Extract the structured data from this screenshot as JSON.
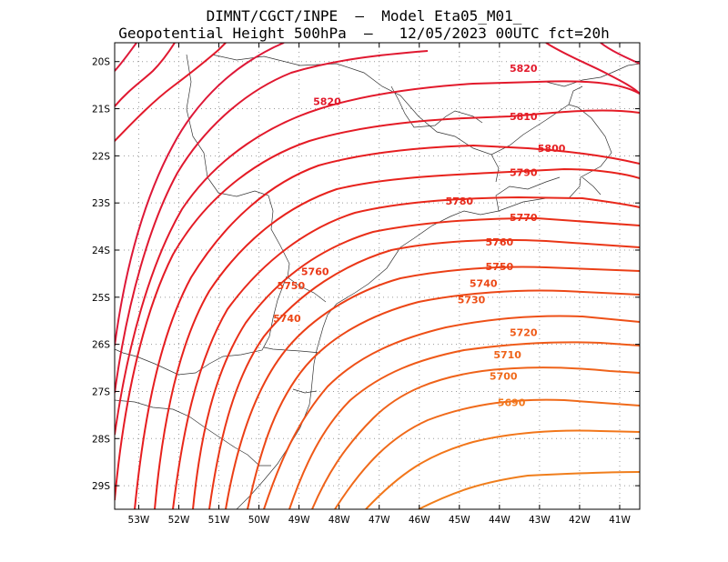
{
  "title": {
    "line1": "DIMNT/CGCT/INPE  –  Model Eta05_M01_",
    "line2": "Geopotential Height 500hPa  –   12/05/2023 00UTC fct=20h"
  },
  "chart_data": {
    "type": "contour",
    "variable": "Geopotential Height 500hPa",
    "lon_range": [
      -53.6,
      -40.5
    ],
    "lat_range": [
      -29.5,
      -19.6
    ],
    "lon_ticks": [
      "53W",
      "52W",
      "51W",
      "50W",
      "49W",
      "48W",
      "47W",
      "46W",
      "45W",
      "44W",
      "43W",
      "42W",
      "41W"
    ],
    "lat_ticks": [
      "20S",
      "21S",
      "22S",
      "23S",
      "24S",
      "25S",
      "26S",
      "27S",
      "28S",
      "29S"
    ],
    "grid": "dotted",
    "contour_levels": [
      5680,
      5690,
      5700,
      5710,
      5720,
      5730,
      5740,
      5750,
      5760,
      5770,
      5780,
      5790,
      5800,
      5810,
      5820,
      5830,
      5840
    ],
    "level_colors": {
      "5680": "#f07e1c",
      "5690": "#f2761a",
      "5700": "#f06a1a",
      "5710": "#ef631a",
      "5720": "#ef5a18",
      "5730": "#ee5017",
      "5740": "#ec4716",
      "5750": "#eb3f16",
      "5760": "#ea3617",
      "5770": "#e92f18",
      "5780": "#e8281b",
      "5790": "#e7221c",
      "5800": "#e61d20",
      "5810": "#e41b25",
      "5820": "#e2192b",
      "5830": "#e01830",
      "5840": "#de1838"
    },
    "contour_labels": [
      {
        "text": "5820",
        "lon": -43.4,
        "lat": -20.14
      },
      {
        "text": "5820",
        "lon": -48.3,
        "lat": -20.84
      },
      {
        "text": "5810",
        "lon": -43.4,
        "lat": -21.16
      },
      {
        "text": "5800",
        "lon": -42.7,
        "lat": -21.84
      },
      {
        "text": "5790",
        "lon": -43.4,
        "lat": -22.35
      },
      {
        "text": "5780",
        "lon": -45.0,
        "lat": -22.96
      },
      {
        "text": "5770",
        "lon": -43.4,
        "lat": -23.31
      },
      {
        "text": "5760",
        "lon": -44.0,
        "lat": -23.83
      },
      {
        "text": "5760",
        "lon": -48.6,
        "lat": -24.45
      },
      {
        "text": "5750",
        "lon": -44.0,
        "lat": -24.35
      },
      {
        "text": "5750",
        "lon": -49.2,
        "lat": -24.75
      },
      {
        "text": "5740",
        "lon": -44.4,
        "lat": -24.7
      },
      {
        "text": "5740",
        "lon": -49.3,
        "lat": -25.45
      },
      {
        "text": "5730",
        "lon": -44.7,
        "lat": -25.05
      },
      {
        "text": "5720",
        "lon": -43.4,
        "lat": -25.75
      },
      {
        "text": "5710",
        "lon": -43.8,
        "lat": -26.22
      },
      {
        "text": "5700",
        "lon": -43.9,
        "lat": -26.67
      },
      {
        "text": "5690",
        "lon": -43.7,
        "lat": -27.23
      }
    ]
  }
}
